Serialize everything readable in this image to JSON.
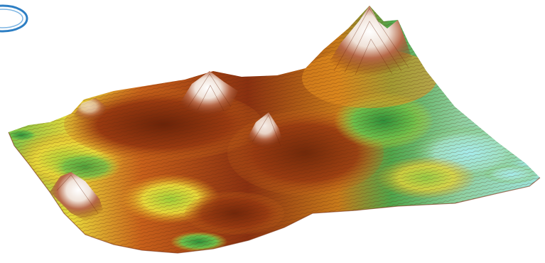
{
  "figure": {
    "kind": "3D digital elevation model surface with hypsometric tint",
    "colors": {
      "background": "#ffffff",
      "logo_ring": "#2e7fc4",
      "water_low": "#9ee6e0",
      "lowland": "#4fa64a",
      "green_mid": "#7cc24a",
      "yellow": "#e8d83a",
      "orange": "#e8901f",
      "brown": "#9a3a10",
      "dark_brown": "#6b2308",
      "peak": "#f4ebe4",
      "contour": "#5a2a10"
    },
    "icons": [
      "logo-ring-icon"
    ]
  }
}
